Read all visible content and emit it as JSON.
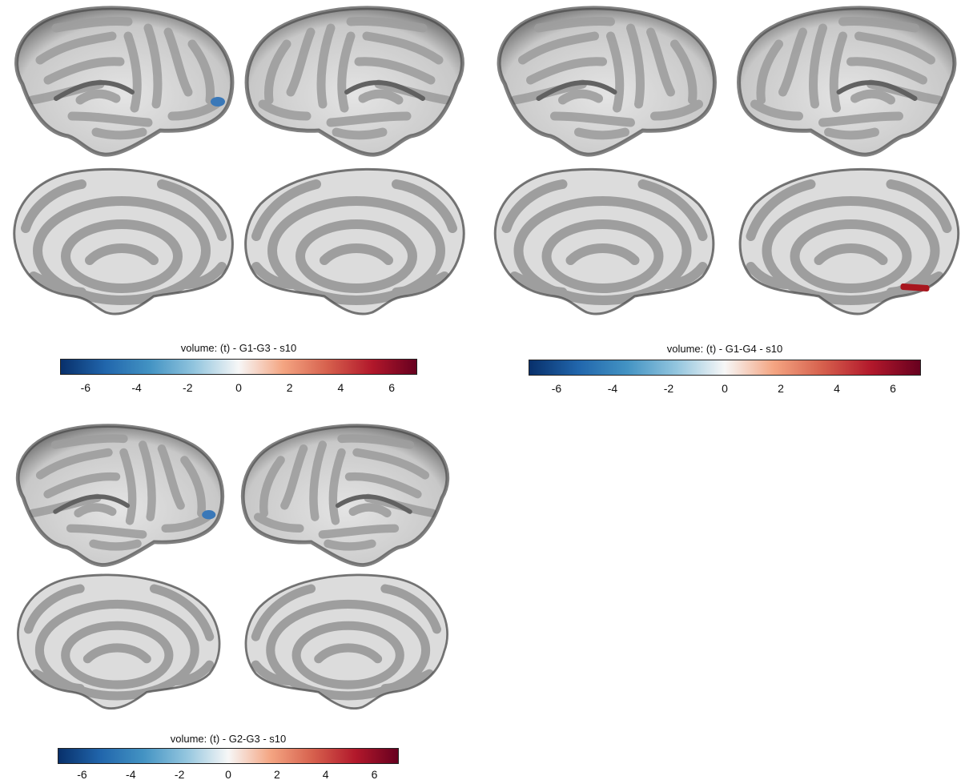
{
  "colors": {
    "colormap": [
      "#08306b",
      "#2166ac",
      "#4393c3",
      "#92c5de",
      "#f7f7f7",
      "#f4a582",
      "#d6604d",
      "#b2182b",
      "#67001f"
    ],
    "gyri": "#dcdcdc",
    "sulci": "#9e9e9e",
    "outline": "#4a4a4a",
    "blue_blob": "#3a78b8",
    "red_blob": "#a8161e"
  },
  "panels": [
    {
      "title": "volume: (t) - G1-G3 - s10",
      "ticks": [
        "-6",
        "-4",
        "-2",
        "0",
        "2",
        "4",
        "6"
      ],
      "tick_values": [
        -6,
        -4,
        -2,
        0,
        2,
        4,
        6
      ],
      "range": [
        -7,
        7
      ]
    },
    {
      "title": "volume: (t) - G1-G4 - s10",
      "ticks": [
        "-6",
        "-4",
        "-2",
        "0",
        "2",
        "4",
        "6"
      ],
      "tick_values": [
        -6,
        -4,
        -2,
        0,
        2,
        4,
        6
      ],
      "range": [
        -7,
        7
      ]
    },
    {
      "title": "volume: (t) - G2-G3 - s10",
      "ticks": [
        "-6",
        "-4",
        "-2",
        "0",
        "2",
        "4",
        "6"
      ],
      "tick_values": [
        -6,
        -4,
        -2,
        0,
        2,
        4,
        6
      ],
      "range": [
        -7,
        7
      ]
    }
  ]
}
